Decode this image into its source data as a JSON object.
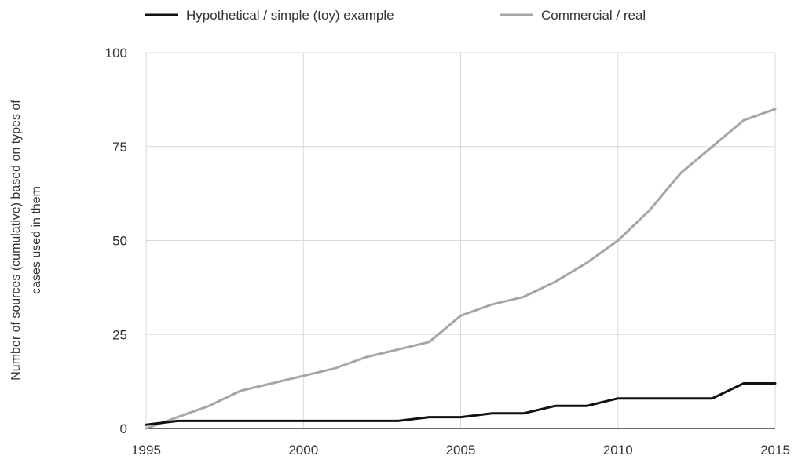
{
  "chart_data": {
    "type": "line",
    "title": "",
    "xlabel": "",
    "ylabel": "Number of sources (cumulative) based on types of cases used in them",
    "ylabel_lines": [
      "Number of sources (cumulative) based on types of",
      "cases used in them"
    ],
    "x": [
      1995,
      1996,
      1997,
      1998,
      1999,
      2000,
      2001,
      2002,
      2003,
      2004,
      2005,
      2006,
      2007,
      2008,
      2009,
      2010,
      2011,
      2012,
      2013,
      2014,
      2015
    ],
    "xlim": [
      1995,
      2015
    ],
    "ylim": [
      0,
      100
    ],
    "x_ticks": [
      "1995",
      "2000",
      "2005",
      "2010",
      "2015"
    ],
    "y_ticks": [
      "0",
      "25",
      "50",
      "75",
      "100"
    ],
    "grid": true,
    "legend_position": "top",
    "series": [
      {
        "name": "Hypothetical / simple (toy) example",
        "color": "#111111",
        "values": [
          1,
          2,
          2,
          2,
          2,
          2,
          2,
          2,
          2,
          3,
          3,
          4,
          4,
          6,
          6,
          8,
          8,
          8,
          8,
          12,
          12
        ]
      },
      {
        "name": "Commercial / real",
        "color": "#a6a6a6",
        "values": [
          0,
          3,
          6,
          10,
          12,
          14,
          16,
          19,
          21,
          23,
          30,
          33,
          35,
          39,
          44,
          50,
          58,
          68,
          75,
          82,
          85
        ]
      }
    ]
  }
}
